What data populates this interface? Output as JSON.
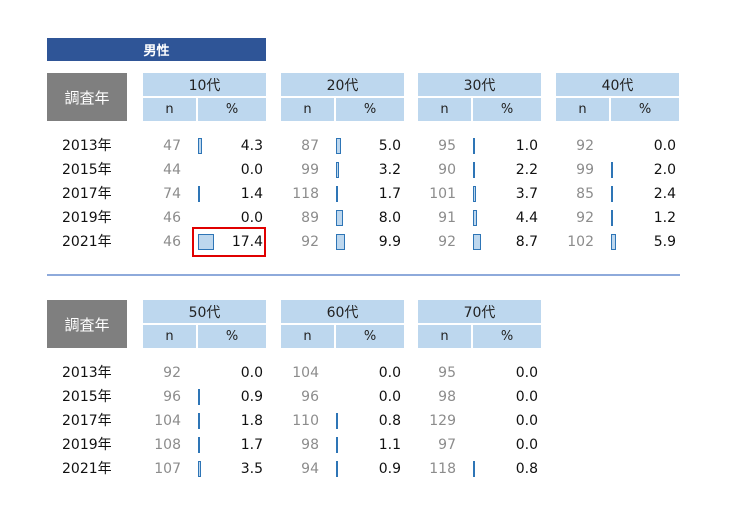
{
  "title": "男性",
  "year_header": "調査年",
  "n_label": "n",
  "pct_label": "%",
  "colors": {
    "title_bg": "#2f5597",
    "header_bg": "#bdd7ee",
    "year_header_bg": "#7f7f7f",
    "bar_fill": "#bdd7ee",
    "bar_border": "#2e75b6",
    "highlight": "#e00000"
  },
  "chart_data": [
    {
      "type": "table",
      "years": [
        "2013年",
        "2015年",
        "2017年",
        "2019年",
        "2021年"
      ],
      "groups": [
        {
          "label": "10代",
          "n": [
            "47",
            "44",
            "74",
            "46",
            "46"
          ],
          "pct": [
            "4.3",
            "0.0",
            "1.4",
            "0.0",
            "17.4"
          ],
          "highlight_row": 4
        },
        {
          "label": "20代",
          "n": [
            "87",
            "99",
            "118",
            "89",
            "92"
          ],
          "pct": [
            "5.0",
            "3.2",
            "1.7",
            "8.0",
            "9.9"
          ]
        },
        {
          "label": "30代",
          "n": [
            "95",
            "90",
            "101",
            "91",
            "92"
          ],
          "pct": [
            "1.0",
            "2.2",
            "3.7",
            "4.4",
            "8.7"
          ]
        },
        {
          "label": "40代",
          "n": [
            "92",
            "99",
            "85",
            "92",
            "102"
          ],
          "pct": [
            "0.0",
            "2.0",
            "2.4",
            "1.2",
            "5.9"
          ]
        }
      ]
    },
    {
      "type": "table",
      "years": [
        "2013年",
        "2015年",
        "2017年",
        "2019年",
        "2021年"
      ],
      "groups": [
        {
          "label": "50代",
          "n": [
            "92",
            "96",
            "104",
            "108",
            "107"
          ],
          "pct": [
            "0.0",
            "0.9",
            "1.8",
            "1.7",
            "3.5"
          ]
        },
        {
          "label": "60代",
          "n": [
            "104",
            "96",
            "110",
            "98",
            "94"
          ],
          "pct": [
            "0.0",
            "0.0",
            "0.8",
            "1.1",
            "0.9"
          ]
        },
        {
          "label": "70代",
          "n": [
            "95",
            "98",
            "129",
            "97",
            "118"
          ],
          "pct": [
            "0.0",
            "0.0",
            "0.0",
            "0.0",
            "0.8"
          ]
        }
      ]
    }
  ]
}
